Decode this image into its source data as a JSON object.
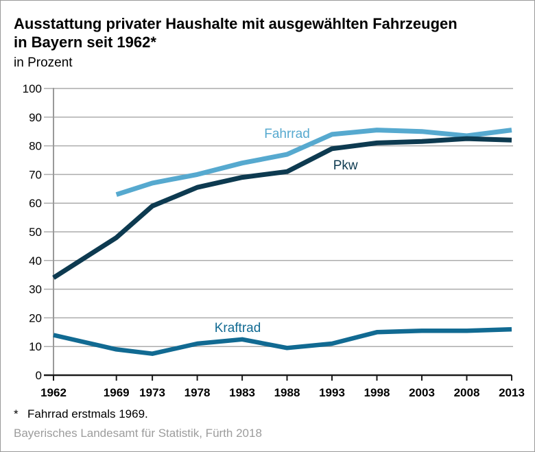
{
  "title": {
    "line1": "Ausstattung privater Haushalte mit ausgewählten Fahrzeugen",
    "line2": "in Bayern seit 1962*",
    "subtitle": "in Prozent"
  },
  "footnote": {
    "marker": "*",
    "text": "Fahrrad erstmals 1969."
  },
  "source": "Bayerisches Landesamt für Statistik, Fürth 2018",
  "chart_data": {
    "type": "line",
    "title": "Ausstattung privater Haushalte mit ausgewählten Fahrzeugen in Bayern seit 1962*",
    "subtitle_unit": "in Prozent",
    "x": [
      1962,
      1969,
      1973,
      1978,
      1983,
      1988,
      1993,
      1998,
      2003,
      2008,
      2013
    ],
    "x_tick_labels": [
      "1962",
      "1969",
      "1973",
      "1978",
      "1983",
      "1988",
      "1993",
      "1998",
      "2003",
      "2008",
      "2013"
    ],
    "xlim": [
      1962,
      2013
    ],
    "ylim": [
      0,
      100
    ],
    "y_ticks": [
      0,
      10,
      20,
      30,
      40,
      50,
      60,
      70,
      80,
      90,
      100
    ],
    "grid": true,
    "legend": "inline-line-labels",
    "style": {
      "grid_color": "#ACACAC",
      "y_axis_color": "#999999",
      "x_axis_color": "#1A1A1A",
      "tick_label_color": "#000000",
      "source_color": "#9C9C9C",
      "frame_border_color": "#999999",
      "background": "#FFFFFF"
    },
    "series": [
      {
        "name": "Kraftrad",
        "color": "#116A92",
        "line_width": 6.5,
        "values": [
          14,
          9,
          7.5,
          11,
          12.5,
          9.5,
          11,
          15,
          15.5,
          15.5,
          16
        ],
        "label_at": {
          "x": 1982.5,
          "y": 16.6
        }
      },
      {
        "name": "Fahrrad",
        "color": "#56A9CF",
        "line_width": 7,
        "values": [
          null,
          63,
          67,
          70,
          74,
          77,
          84,
          85.5,
          85,
          83.5,
          85.5
        ],
        "label_at": {
          "x": 1988,
          "y": 84.3
        }
      },
      {
        "name": "Pkw",
        "color": "#0D3A50",
        "line_width": 7,
        "values": [
          34,
          48,
          59,
          65.5,
          69,
          71,
          79,
          81,
          81.5,
          82.5,
          82
        ],
        "label_at": {
          "x": 1994.5,
          "y": 73.3
        }
      }
    ]
  }
}
